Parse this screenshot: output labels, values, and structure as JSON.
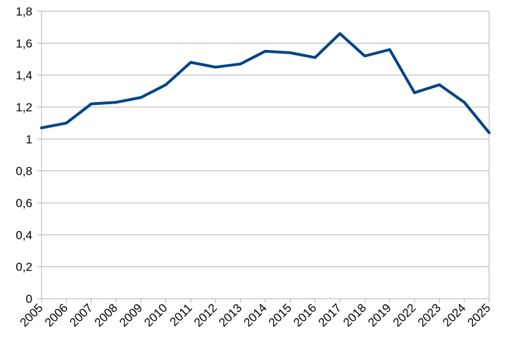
{
  "chart_data": {
    "type": "line",
    "title": "",
    "xlabel": "",
    "ylabel": "",
    "categories": [
      "2005",
      "2006",
      "2007",
      "2008",
      "2009",
      "2010",
      "2011",
      "2012",
      "2013",
      "2014",
      "2015",
      "2016",
      "2017",
      "2018",
      "2019",
      "2022",
      "2023",
      "2024",
      "2025"
    ],
    "series": [
      {
        "color": "#004586",
        "values": [
          1.07,
          1.1,
          1.22,
          1.23,
          1.26,
          1.34,
          1.48,
          1.45,
          1.47,
          1.55,
          1.54,
          1.51,
          1.66,
          1.52,
          1.56,
          1.29,
          1.34,
          1.23,
          1.04
        ]
      }
    ],
    "ylim": [
      0,
      1.8
    ],
    "yticks": [
      "0",
      "0,2",
      "0,4",
      "0,6",
      "0,8",
      "1",
      "1,2",
      "1,4",
      "1,6",
      "1,8"
    ],
    "yticks_values": [
      0,
      0.2,
      0.4,
      0.6,
      0.8,
      1,
      1.2,
      1.4,
      1.6,
      1.8
    ],
    "grid": "horizontal",
    "decimal_separator": ",",
    "legend": "none"
  }
}
